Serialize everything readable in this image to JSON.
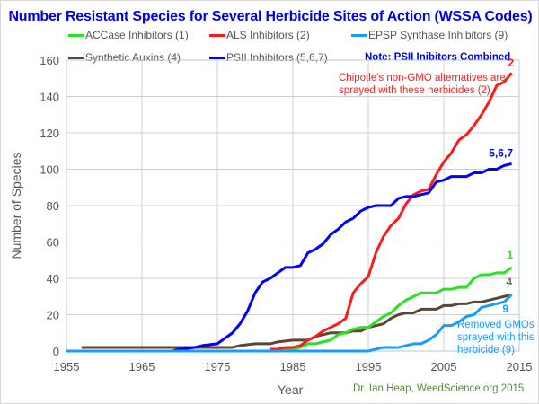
{
  "chart_data": {
    "type": "line",
    "title": "Number Resistant Species for Several Herbicide Sites of Action (WSSA Codes)",
    "xlabel": "Year",
    "ylabel": "Number of Species",
    "xlim": [
      1955,
      2015
    ],
    "ylim": [
      0,
      160
    ],
    "x_ticks": [
      "1955",
      "1965",
      "1975",
      "1985",
      "1995",
      "2005",
      "2015"
    ],
    "y_ticks": [
      "0",
      "20",
      "40",
      "60",
      "80",
      "100",
      "120",
      "140",
      "160"
    ],
    "grid": true,
    "legend_placement": "top",
    "note": "Note: PSII Inibitors Combined",
    "credit": "Dr. Ian Heap, WeedScience.org  2015",
    "annotations": {
      "als": "Chipotle's non-GMO alternatives are sprayed with these herbicides (2)",
      "epsp": "Removed GMOs sprayed with this herbicide (9)"
    },
    "series": [
      {
        "name": "ACCase Inhibitors (1)",
        "end_label": "1",
        "color": "#22e622",
        "points": [
          [
            1955,
            0
          ],
          [
            1982,
            0
          ],
          [
            1983,
            1
          ],
          [
            1985,
            1
          ],
          [
            1986,
            2
          ],
          [
            1987,
            4
          ],
          [
            1988,
            4
          ],
          [
            1989,
            5
          ],
          [
            1990,
            6
          ],
          [
            1991,
            9
          ],
          [
            1992,
            10
          ],
          [
            1993,
            12
          ],
          [
            1994,
            13
          ],
          [
            1995,
            13
          ],
          [
            1996,
            16
          ],
          [
            1997,
            19
          ],
          [
            1998,
            21
          ],
          [
            1999,
            25
          ],
          [
            2000,
            28
          ],
          [
            2001,
            30
          ],
          [
            2002,
            32
          ],
          [
            2003,
            32
          ],
          [
            2004,
            32
          ],
          [
            2005,
            34
          ],
          [
            2006,
            34
          ],
          [
            2007,
            35
          ],
          [
            2008,
            35
          ],
          [
            2009,
            40
          ],
          [
            2010,
            42
          ],
          [
            2011,
            42
          ],
          [
            2012,
            43
          ],
          [
            2013,
            43
          ],
          [
            2014,
            46
          ]
        ]
      },
      {
        "name": "ALS Inhibitors (2)",
        "end_label": "2",
        "color": "#ff1a1a",
        "points": [
          [
            1982,
            1
          ],
          [
            1983,
            1
          ],
          [
            1984,
            2
          ],
          [
            1985,
            2
          ],
          [
            1986,
            3
          ],
          [
            1987,
            6
          ],
          [
            1988,
            8
          ],
          [
            1989,
            11
          ],
          [
            1990,
            13
          ],
          [
            1991,
            15
          ],
          [
            1992,
            18
          ],
          [
            1993,
            32
          ],
          [
            1994,
            37
          ],
          [
            1995,
            41
          ],
          [
            1996,
            54
          ],
          [
            1997,
            63
          ],
          [
            1998,
            69
          ],
          [
            1999,
            73
          ],
          [
            2000,
            81
          ],
          [
            2001,
            86
          ],
          [
            2002,
            88
          ],
          [
            2003,
            89
          ],
          [
            2004,
            97
          ],
          [
            2005,
            104
          ],
          [
            2006,
            109
          ],
          [
            2007,
            116
          ],
          [
            2008,
            119
          ],
          [
            2009,
            124
          ],
          [
            2010,
            130
          ],
          [
            2011,
            137
          ],
          [
            2012,
            146
          ],
          [
            2013,
            148
          ],
          [
            2014,
            153
          ]
        ]
      },
      {
        "name": "EPSP Synthase Inhibitors (9)",
        "end_label": "9",
        "color": "#1a9cff",
        "points": [
          [
            1955,
            0
          ],
          [
            1995,
            0
          ],
          [
            1996,
            1
          ],
          [
            1997,
            2
          ],
          [
            1998,
            2
          ],
          [
            1999,
            2
          ],
          [
            2000,
            3
          ],
          [
            2001,
            4
          ],
          [
            2002,
            4
          ],
          [
            2003,
            6
          ],
          [
            2004,
            9
          ],
          [
            2005,
            14
          ],
          [
            2006,
            14
          ],
          [
            2007,
            16
          ],
          [
            2008,
            19
          ],
          [
            2009,
            20
          ],
          [
            2010,
            24
          ],
          [
            2011,
            25
          ],
          [
            2012,
            26
          ],
          [
            2013,
            27
          ],
          [
            2014,
            31
          ]
        ]
      },
      {
        "name": "Synthetic Auxins (4)",
        "end_label": "4",
        "color": "#5e4630",
        "points": [
          [
            1957,
            2
          ],
          [
            1977,
            2
          ],
          [
            1978,
            3
          ],
          [
            1980,
            4
          ],
          [
            1982,
            4
          ],
          [
            1983,
            5
          ],
          [
            1985,
            6
          ],
          [
            1987,
            6
          ],
          [
            1988,
            8
          ],
          [
            1989,
            9
          ],
          [
            1990,
            10
          ],
          [
            1992,
            10
          ],
          [
            1993,
            11
          ],
          [
            1994,
            11
          ],
          [
            1995,
            13
          ],
          [
            1996,
            14
          ],
          [
            1997,
            15
          ],
          [
            1998,
            18
          ],
          [
            1999,
            20
          ],
          [
            2000,
            21
          ],
          [
            2001,
            21
          ],
          [
            2002,
            23
          ],
          [
            2004,
            23
          ],
          [
            2005,
            25
          ],
          [
            2006,
            25
          ],
          [
            2007,
            26
          ],
          [
            2008,
            26
          ],
          [
            2009,
            27
          ],
          [
            2010,
            27
          ],
          [
            2011,
            28
          ],
          [
            2012,
            29
          ],
          [
            2013,
            30
          ],
          [
            2014,
            31
          ]
        ]
      },
      {
        "name": "PSII Inhibitors (5,6,7)",
        "end_label": "5,6,7",
        "color": "#0000ff",
        "points": [
          [
            1955,
            0
          ],
          [
            1969,
            0
          ],
          [
            1970,
            1
          ],
          [
            1972,
            2
          ],
          [
            1973,
            3
          ],
          [
            1975,
            4
          ],
          [
            1976,
            7
          ],
          [
            1977,
            10
          ],
          [
            1978,
            15
          ],
          [
            1979,
            22
          ],
          [
            1980,
            32
          ],
          [
            1981,
            38
          ],
          [
            1982,
            40
          ],
          [
            1983,
            43
          ],
          [
            1984,
            46
          ],
          [
            1985,
            46
          ],
          [
            1986,
            47
          ],
          [
            1987,
            54
          ],
          [
            1988,
            56
          ],
          [
            1989,
            59
          ],
          [
            1990,
            64
          ],
          [
            1991,
            67
          ],
          [
            1992,
            71
          ],
          [
            1993,
            73
          ],
          [
            1994,
            77
          ],
          [
            1995,
            79
          ],
          [
            1996,
            80
          ],
          [
            1998,
            80
          ],
          [
            1999,
            84
          ],
          [
            2000,
            85
          ],
          [
            2001,
            85
          ],
          [
            2002,
            86
          ],
          [
            2003,
            87
          ],
          [
            2004,
            93
          ],
          [
            2005,
            94
          ],
          [
            2006,
            96
          ],
          [
            2008,
            96
          ],
          [
            2009,
            98
          ],
          [
            2010,
            98
          ],
          [
            2011,
            100
          ],
          [
            2012,
            100
          ],
          [
            2013,
            102
          ],
          [
            2014,
            103
          ]
        ]
      }
    ]
  }
}
